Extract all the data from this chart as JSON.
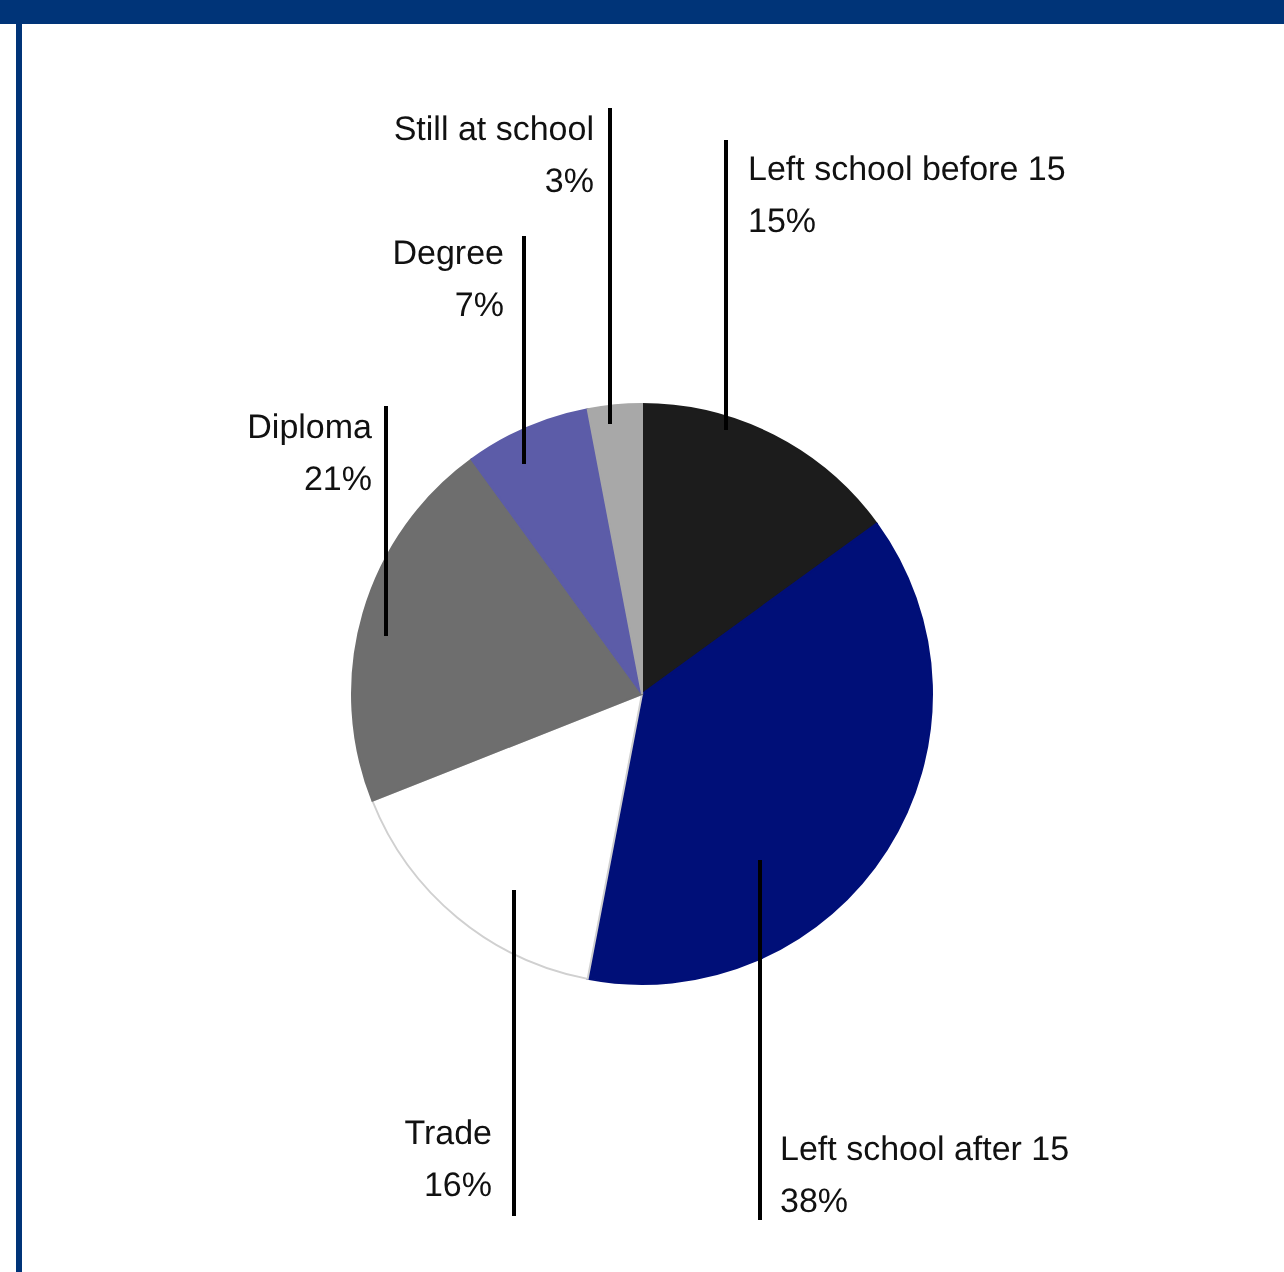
{
  "chart_data": {
    "type": "pie",
    "categories": [
      "Left school before 15",
      "Left school after 15",
      "Trade",
      "Diploma",
      "Degree",
      "Still at school"
    ],
    "values": [
      15,
      38,
      16,
      21,
      7,
      3
    ],
    "value_labels": [
      "15%",
      "38%",
      "16%",
      "21%",
      "7%",
      "3%"
    ],
    "colors": [
      "#1c1c1c",
      "#000f78",
      "#ffffff",
      "#6e6e6e",
      "#5c5ca8",
      "#a8a8a8"
    ]
  }
}
